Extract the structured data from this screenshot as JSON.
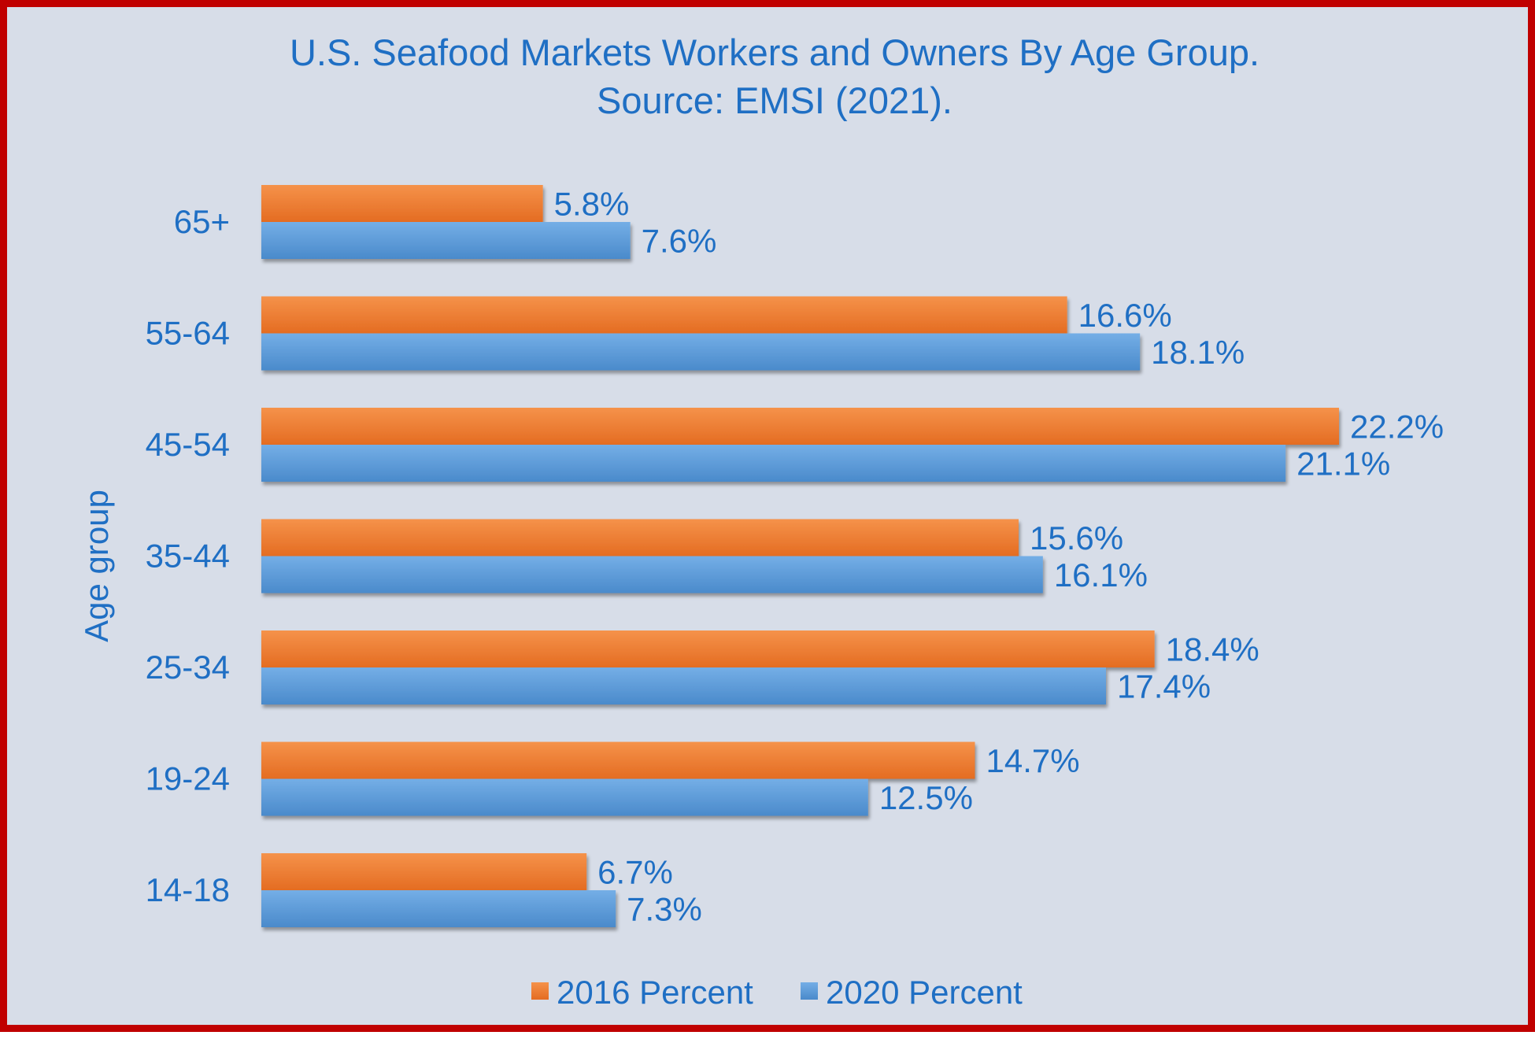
{
  "chart_data": {
    "type": "bar",
    "orientation": "horizontal",
    "title_lines": [
      "U.S. Seafood Markets Workers and Owners By Age Group.",
      "Source: EMSI (2021)."
    ],
    "ylabel": "Age group",
    "categories": [
      "65+",
      "55-64",
      "45-54",
      "35-44",
      "25-34",
      "19-24",
      "14-18"
    ],
    "series": [
      {
        "name": "2016 Percent",
        "color": "#ed7d31",
        "values": [
          5.8,
          16.6,
          22.2,
          15.6,
          18.4,
          14.7,
          6.7
        ],
        "labels": [
          "5.8%",
          "16.6%",
          "22.2%",
          "15.6%",
          "18.4%",
          "14.7%",
          "6.7%"
        ]
      },
      {
        "name": "2020 Percent",
        "color": "#5b9bd5",
        "values": [
          7.6,
          18.1,
          21.1,
          16.1,
          17.4,
          12.5,
          7.3
        ],
        "labels": [
          "7.6%",
          "18.1%",
          "21.1%",
          "16.1%",
          "17.4%",
          "12.5%",
          "7.3%"
        ]
      }
    ],
    "xlim": [
      0,
      22.2
    ],
    "grid": false,
    "legend_position": "bottom"
  }
}
